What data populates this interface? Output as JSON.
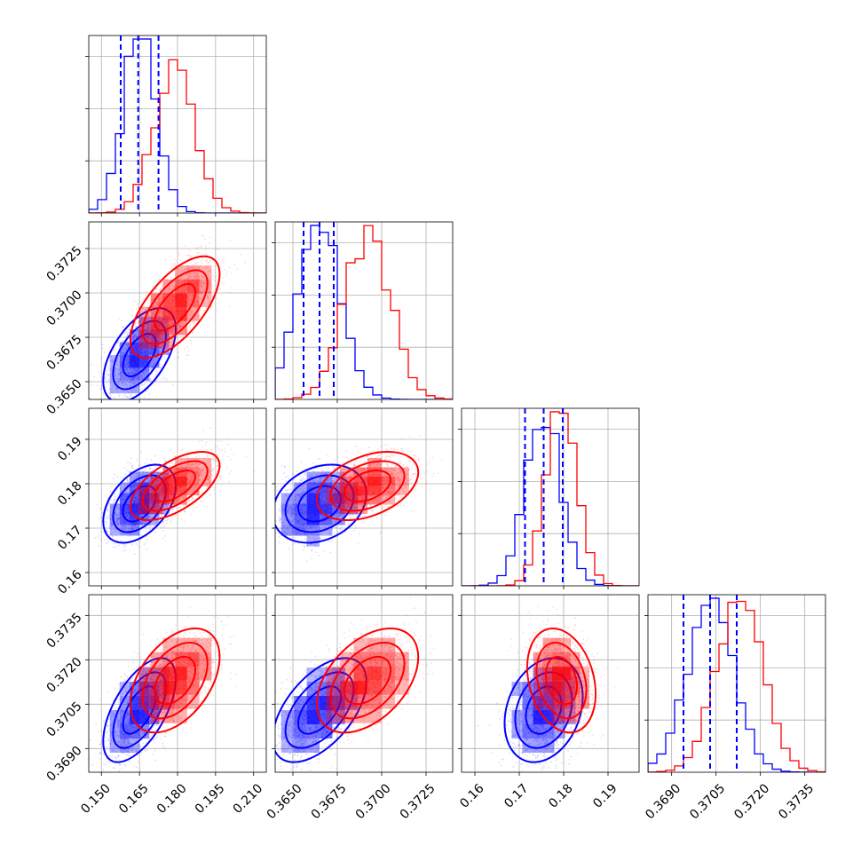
{
  "chart_data": {
    "type": "corner",
    "title": "",
    "colors": {
      "series_a": "#0000ff",
      "series_b": "#ff0000",
      "grid": "#b0b0b0"
    },
    "grid": true,
    "series": [
      {
        "name": "",
        "color": "#0000ff",
        "quantile_lines": "dashed"
      },
      {
        "name": "",
        "color": "#ff0000"
      }
    ],
    "parameters": [
      {
        "index": 0,
        "range": [
          0.145,
          0.215
        ],
        "ticks": [
          0.15,
          0.165,
          0.18,
          0.195,
          0.21
        ],
        "tick_labels": [
          "0.150",
          "0.165",
          "0.180",
          "0.195",
          "0.210"
        ],
        "y_tick_labels": [],
        "blue": {
          "mean": 0.165,
          "sd": 0.0065,
          "quantiles": [
            0.1576,
            0.1645,
            0.1725
          ]
        },
        "red": {
          "mean": 0.179,
          "sd": 0.008
        }
      },
      {
        "index": 1,
        "range": [
          0.364,
          0.374
        ],
        "ticks": [
          0.365,
          0.3675,
          0.37,
          0.3725
        ],
        "tick_labels": [
          "0.3650",
          "0.3675",
          "0.3700",
          "0.3725"
        ],
        "y_tick_labels": [
          "0.3650",
          "0.3675",
          "0.3700",
          "0.3725"
        ],
        "blue": {
          "mean": 0.3665,
          "sd": 0.0012,
          "quantiles": [
            0.3656,
            0.3665,
            0.3673
          ]
        },
        "red": {
          "mean": 0.3692,
          "sd": 0.0013
        }
      },
      {
        "index": 2,
        "range": [
          0.157,
          0.197
        ],
        "ticks": [
          0.16,
          0.17,
          0.18,
          0.19
        ],
        "tick_labels": [
          "0.16",
          "0.17",
          "0.18",
          "0.19"
        ],
        "y_tick_labels": [
          "0.16",
          "0.17",
          "0.18",
          "0.19"
        ],
        "blue": {
          "mean": 0.1755,
          "sd": 0.004,
          "quantiles": [
            0.1713,
            0.1755,
            0.1798
          ]
        },
        "red": {
          "mean": 0.1795,
          "sd": 0.0035
        }
      },
      {
        "index": 3,
        "range": [
          0.3682,
          0.3742
        ],
        "ticks": [
          0.369,
          0.3705,
          0.372,
          0.3735
        ],
        "tick_labels": [
          "0.3690",
          "0.3705",
          "0.3720",
          "0.3735"
        ],
        "y_tick_labels": [
          "0.3690",
          "0.3705",
          "0.3720",
          "0.3735"
        ],
        "blue": {
          "mean": 0.3703,
          "sd": 0.0008,
          "quantiles": [
            0.3694,
            0.3703,
            0.3712
          ]
        },
        "red": {
          "mean": 0.3713,
          "sd": 0.0008
        }
      }
    ],
    "correlations": {
      "blue": [
        [
          1,
          0.55,
          0.45,
          0.6
        ],
        [
          0.55,
          1,
          0.25,
          0.55
        ],
        [
          0.45,
          0.25,
          1,
          0.25
        ],
        [
          0.6,
          0.55,
          0.25,
          1
        ]
      ],
      "red": [
        [
          1,
          0.65,
          0.6,
          0.45
        ],
        [
          0.65,
          1,
          0.4,
          0.45
        ],
        [
          0.6,
          0.4,
          1,
          -0.25
        ],
        [
          0.45,
          0.45,
          -0.25,
          1
        ]
      ]
    },
    "histogram_bins": 20,
    "contour_levels_sigma": [
      1.0,
      1.6,
      2.2
    ]
  }
}
